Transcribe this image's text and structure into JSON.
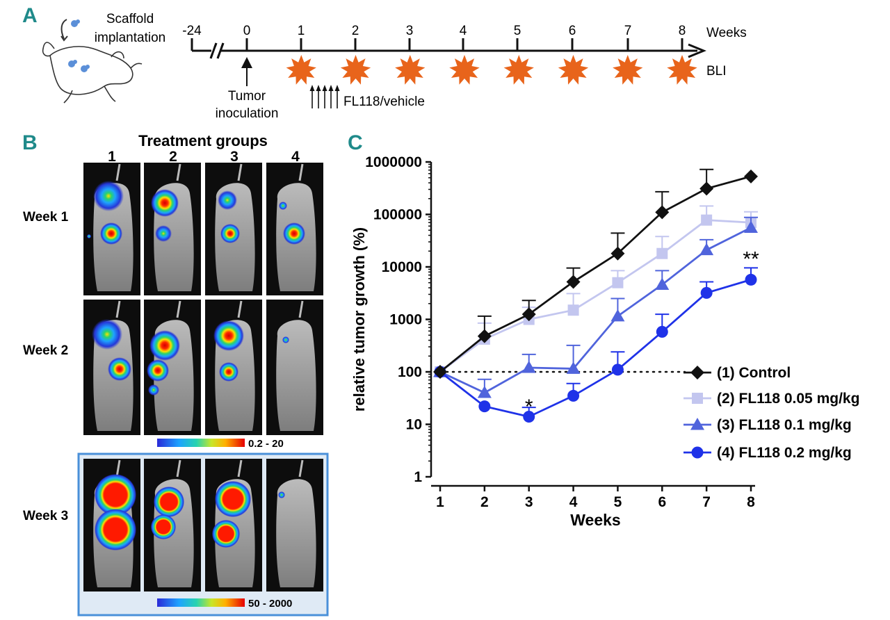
{
  "panels": {
    "a": {
      "letter": "A",
      "scaffold_label_1": "Scaffold",
      "scaffold_label_2": "implantation",
      "timeline_ticks": [
        "-24",
        "0",
        "1",
        "2",
        "3",
        "4",
        "5",
        "6",
        "7",
        "8"
      ],
      "weeks_label": "Weeks",
      "bli_label": "BLI",
      "tumor_label_1": "Tumor",
      "tumor_label_2": "inoculation",
      "treatment_label": "FL118/vehicle",
      "bli_weeks": [
        1,
        2,
        3,
        4,
        5,
        6,
        7,
        8
      ],
      "dose_arrow_count": 5
    },
    "b": {
      "letter": "B",
      "title": "Treatment groups",
      "group_labels": [
        "1",
        "2",
        "3",
        "4"
      ],
      "row_labels": [
        "Week 1",
        "Week 2",
        "Week 3"
      ],
      "scale_1_label": "0.2 - 20",
      "scale_2_label": "50 - 2000"
    },
    "c": {
      "letter": "C"
    }
  },
  "colors": {
    "panel_letter": "#1f8a8a",
    "timeline": "#111111",
    "burst": "#e8641b",
    "control": "#111111",
    "fl118_005": "#c3c6ef",
    "fl118_01": "#5064dc",
    "fl118_02": "#1f32e8",
    "week3_frame": "#4a90d9"
  },
  "chart_data": {
    "type": "line",
    "yscale": "log",
    "title": "",
    "xlabel": "Weeks",
    "ylabel": "relative tumor growth (%)",
    "x": [
      1,
      2,
      3,
      4,
      5,
      6,
      7,
      8
    ],
    "xticks": [
      "1",
      "2",
      "3",
      "4",
      "5",
      "6",
      "7",
      "8"
    ],
    "xlim": [
      1,
      8
    ],
    "ylim": [
      1,
      1000000
    ],
    "yticks": [
      "1",
      "10",
      "100",
      "1000",
      "10000",
      "100000",
      "1000000"
    ],
    "yticks_values": [
      1,
      10,
      100,
      1000,
      10000,
      100000,
      1000000
    ],
    "reference_line": 100,
    "legend_position": "right",
    "series": [
      {
        "name": "(1) Control",
        "marker": "diamond",
        "values": [
          100,
          480,
          1250,
          5200,
          18000,
          110000,
          310000,
          530000
        ],
        "error_upper": [
          null,
          1150,
          2300,
          9500,
          44000,
          270000,
          720000,
          null
        ]
      },
      {
        "name": "(2) FL118 0.05 mg/kg",
        "marker": "square",
        "values": [
          100,
          420,
          1000,
          1500,
          5000,
          18000,
          78000,
          70000
        ],
        "error_upper": [
          null,
          850,
          1700,
          3100,
          8500,
          38000,
          145000,
          112000
        ]
      },
      {
        "name": "(3) FL118 0.1 mg/kg",
        "marker": "triangle",
        "values": [
          100,
          40,
          120,
          115,
          1150,
          4600,
          21000,
          56000
        ],
        "error_upper": [
          null,
          72,
          215,
          320,
          2500,
          8500,
          33000,
          88000
        ]
      },
      {
        "name": "(4) FL118 0.2 mg/kg",
        "marker": "circle",
        "values": [
          100,
          22,
          14,
          35,
          110,
          580,
          3200,
          5700
        ],
        "error_upper": [
          null,
          null,
          21,
          60,
          240,
          1250,
          5200,
          9600
        ]
      }
    ],
    "annotations": [
      {
        "text": "*",
        "x": 3,
        "y": 23
      },
      {
        "text": "**",
        "x": 8,
        "y": 15000
      }
    ]
  }
}
